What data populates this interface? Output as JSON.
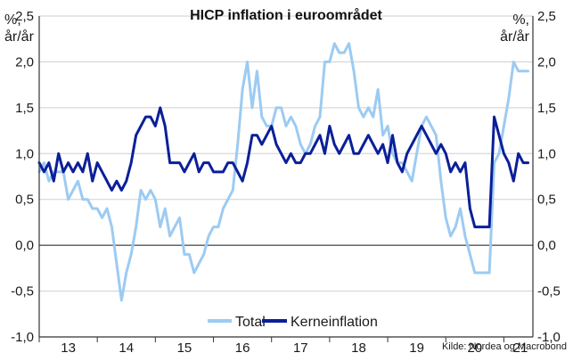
{
  "chart_data": {
    "type": "line",
    "title": "HICP inflation i euroområdet",
    "ylabel_left": [
      "%,",
      "år/år"
    ],
    "ylabel_right": [
      "%,",
      "år/år"
    ],
    "ylim": [
      -1.0,
      2.5
    ],
    "yticks": [
      -1.0,
      -0.5,
      0.0,
      0.5,
      1.0,
      1.5,
      2.0,
      2.5
    ],
    "ytick_labels": [
      "-1,0",
      "-0,5",
      "0,0",
      "0,5",
      "1,0",
      "1,5",
      "2,0",
      "2,5"
    ],
    "xlim": [
      2013.0,
      2021.5
    ],
    "x_tick_labels": [
      "13",
      "14",
      "15",
      "16",
      "17",
      "18",
      "19",
      "20",
      "21"
    ],
    "grid": true,
    "legend_position": "bottom",
    "source": "Kilde: Nordea og Macrobond",
    "series": [
      {
        "name": "Total",
        "color": "#9ccbf2",
        "x": [
          2013.0,
          2013.083,
          2013.167,
          2013.25,
          2013.333,
          2013.417,
          2013.5,
          2013.583,
          2013.667,
          2013.75,
          2013.833,
          2013.917,
          2014.0,
          2014.083,
          2014.167,
          2014.25,
          2014.333,
          2014.417,
          2014.5,
          2014.583,
          2014.667,
          2014.75,
          2014.833,
          2014.917,
          2015.0,
          2015.083,
          2015.167,
          2015.25,
          2015.333,
          2015.417,
          2015.5,
          2015.583,
          2015.667,
          2015.75,
          2015.833,
          2015.917,
          2016.0,
          2016.083,
          2016.167,
          2016.25,
          2016.333,
          2016.417,
          2016.5,
          2016.583,
          2016.667,
          2016.75,
          2016.833,
          2016.917,
          2017.0,
          2017.083,
          2017.167,
          2017.25,
          2017.333,
          2017.417,
          2017.5,
          2017.583,
          2017.667,
          2017.75,
          2017.833,
          2017.917,
          2018.0,
          2018.083,
          2018.167,
          2018.25,
          2018.333,
          2018.417,
          2018.5,
          2018.583,
          2018.667,
          2018.75,
          2018.833,
          2018.917,
          2019.0,
          2019.083,
          2019.167,
          2019.25,
          2019.333,
          2019.417,
          2019.5,
          2019.583,
          2019.667,
          2019.75,
          2019.833,
          2019.917,
          2020.0,
          2020.083,
          2020.167,
          2020.25,
          2020.333,
          2020.417,
          2020.5,
          2020.583,
          2020.667,
          2020.75,
          2020.833,
          2020.917,
          2021.0,
          2021.083,
          2021.167,
          2021.25,
          2021.333,
          2021.417
        ],
        "y": [
          0.8,
          0.9,
          0.7,
          0.8,
          0.8,
          0.8,
          0.5,
          0.6,
          0.7,
          0.5,
          0.5,
          0.4,
          0.4,
          0.3,
          0.4,
          0.2,
          -0.2,
          -0.6,
          -0.3,
          -0.1,
          0.2,
          0.6,
          0.5,
          0.6,
          0.5,
          0.2,
          0.4,
          0.1,
          0.2,
          0.3,
          -0.1,
          -0.1,
          -0.3,
          -0.2,
          -0.1,
          0.1,
          0.2,
          0.2,
          0.4,
          0.5,
          0.6,
          1.1,
          1.7,
          2.0,
          1.5,
          1.9,
          1.4,
          1.3,
          1.3,
          1.5,
          1.5,
          1.3,
          1.4,
          1.3,
          1.1,
          1.0,
          1.1,
          1.3,
          1.4,
          2.0,
          2.0,
          2.2,
          2.1,
          2.1,
          2.2,
          1.9,
          1.5,
          1.4,
          1.5,
          1.4,
          1.7,
          1.2,
          1.3,
          1.0,
          0.9,
          0.9,
          0.8,
          0.7,
          1.0,
          1.3,
          1.4,
          1.3,
          1.2,
          0.7,
          0.3,
          0.1,
          0.2,
          0.4,
          0.1,
          -0.1,
          -0.3,
          -0.3,
          -0.3,
          -0.3,
          0.9,
          1.0,
          1.3,
          1.6,
          2.0,
          1.9,
          1.9,
          1.9
        ]
      },
      {
        "name": "Kerneinflation",
        "color": "#0b1f99",
        "x": [
          2013.0,
          2013.083,
          2013.167,
          2013.25,
          2013.333,
          2013.417,
          2013.5,
          2013.583,
          2013.667,
          2013.75,
          2013.833,
          2013.917,
          2014.0,
          2014.083,
          2014.167,
          2014.25,
          2014.333,
          2014.417,
          2014.5,
          2014.583,
          2014.667,
          2014.75,
          2014.833,
          2014.917,
          2015.0,
          2015.083,
          2015.167,
          2015.25,
          2015.333,
          2015.417,
          2015.5,
          2015.583,
          2015.667,
          2015.75,
          2015.833,
          2015.917,
          2016.0,
          2016.083,
          2016.167,
          2016.25,
          2016.333,
          2016.417,
          2016.5,
          2016.583,
          2016.667,
          2016.75,
          2016.833,
          2016.917,
          2017.0,
          2017.083,
          2017.167,
          2017.25,
          2017.333,
          2017.417,
          2017.5,
          2017.583,
          2017.667,
          2017.75,
          2017.833,
          2017.917,
          2018.0,
          2018.083,
          2018.167,
          2018.25,
          2018.333,
          2018.417,
          2018.5,
          2018.583,
          2018.667,
          2018.75,
          2018.833,
          2018.917,
          2019.0,
          2019.083,
          2019.167,
          2019.25,
          2019.333,
          2019.417,
          2019.5,
          2019.583,
          2019.667,
          2019.75,
          2019.833,
          2019.917,
          2020.0,
          2020.083,
          2020.167,
          2020.25,
          2020.333,
          2020.417,
          2020.5,
          2020.583,
          2020.667,
          2020.75,
          2020.833,
          2020.917,
          2021.0,
          2021.083,
          2021.167,
          2021.25,
          2021.333,
          2021.417
        ],
        "y": [
          0.9,
          0.8,
          0.9,
          0.7,
          1.0,
          0.8,
          0.9,
          0.8,
          0.9,
          0.8,
          1.0,
          0.7,
          0.9,
          0.8,
          0.7,
          0.6,
          0.7,
          0.6,
          0.7,
          0.9,
          1.2,
          1.3,
          1.4,
          1.4,
          1.3,
          1.5,
          1.3,
          0.9,
          0.9,
          0.9,
          0.8,
          0.9,
          1.0,
          0.8,
          0.9,
          0.9,
          0.8,
          0.8,
          0.8,
          0.9,
          0.9,
          0.8,
          0.7,
          0.9,
          1.2,
          1.2,
          1.1,
          1.2,
          1.3,
          1.1,
          1.0,
          0.9,
          1.0,
          0.9,
          0.9,
          1.0,
          1.0,
          1.1,
          1.2,
          1.0,
          1.3,
          1.1,
          1.0,
          1.1,
          1.2,
          1.0,
          1.0,
          1.1,
          1.2,
          1.1,
          1.0,
          1.1,
          0.9,
          1.2,
          0.9,
          0.8,
          1.0,
          1.1,
          1.2,
          1.3,
          1.2,
          1.1,
          1.0,
          1.1,
          1.0,
          0.8,
          0.9,
          0.8,
          0.9,
          0.4,
          0.2,
          0.2,
          0.2,
          0.2,
          1.4,
          1.2,
          1.0,
          0.9,
          0.7,
          1.0,
          0.9,
          0.9
        ]
      }
    ]
  }
}
